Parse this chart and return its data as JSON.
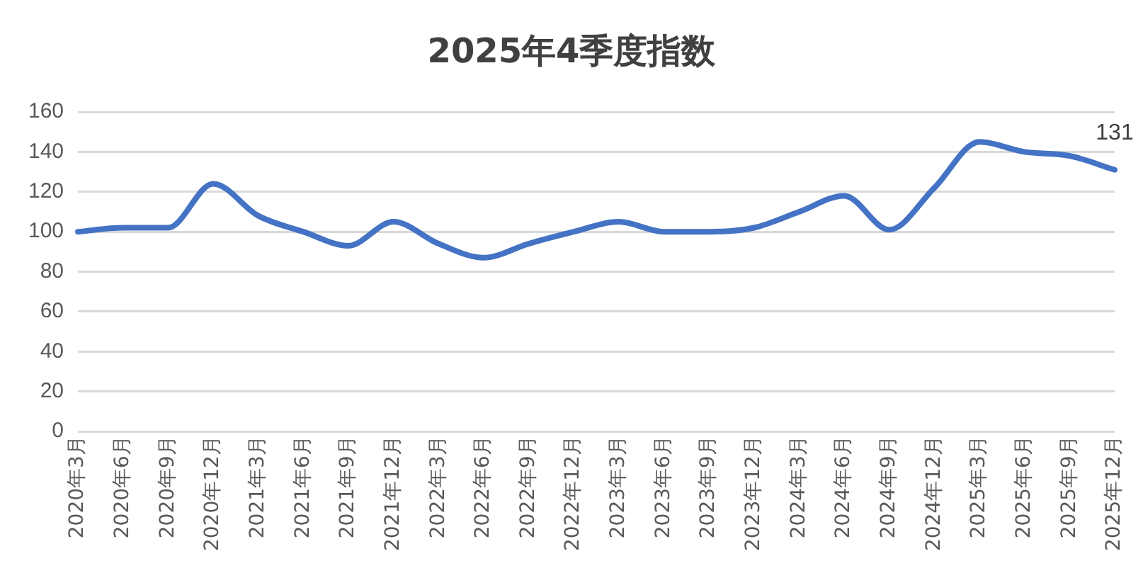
{
  "chart_data": {
    "type": "line",
    "title": "2025年4季度指数",
    "categories": [
      "2020年3月",
      "2020年6月",
      "2020年9月",
      "2020年12月",
      "2021年3月",
      "2021年6月",
      "2021年9月",
      "2021年12月",
      "2022年3月",
      "2022年6月",
      "2022年9月",
      "2022年12月",
      "2023年3月",
      "2023年6月",
      "2023年9月",
      "2023年12月",
      "2024年3月",
      "2024年6月",
      "2024年9月",
      "2024年12月",
      "2025年3月",
      "2025年6月",
      "2025年9月",
      "2025年12月"
    ],
    "series": [
      {
        "color": "#4472c4",
        "values": [
          100,
          102,
          102,
          124,
          108,
          100,
          93,
          105,
          94,
          87,
          94,
          100,
          105,
          100,
          100,
          102,
          110,
          118,
          101,
          122,
          145,
          140,
          138,
          131
        ],
        "value_labels": [
          null,
          null,
          null,
          null,
          null,
          null,
          null,
          null,
          null,
          null,
          null,
          null,
          null,
          null,
          null,
          null,
          null,
          null,
          null,
          null,
          null,
          null,
          null,
          "131"
        ]
      }
    ],
    "ylim": [
      0,
      160
    ],
    "yticks": [
      0,
      20,
      40,
      60,
      80,
      100,
      120,
      140,
      160
    ],
    "grid": "y",
    "legend": false,
    "marker": "none",
    "line_style": "solid"
  }
}
